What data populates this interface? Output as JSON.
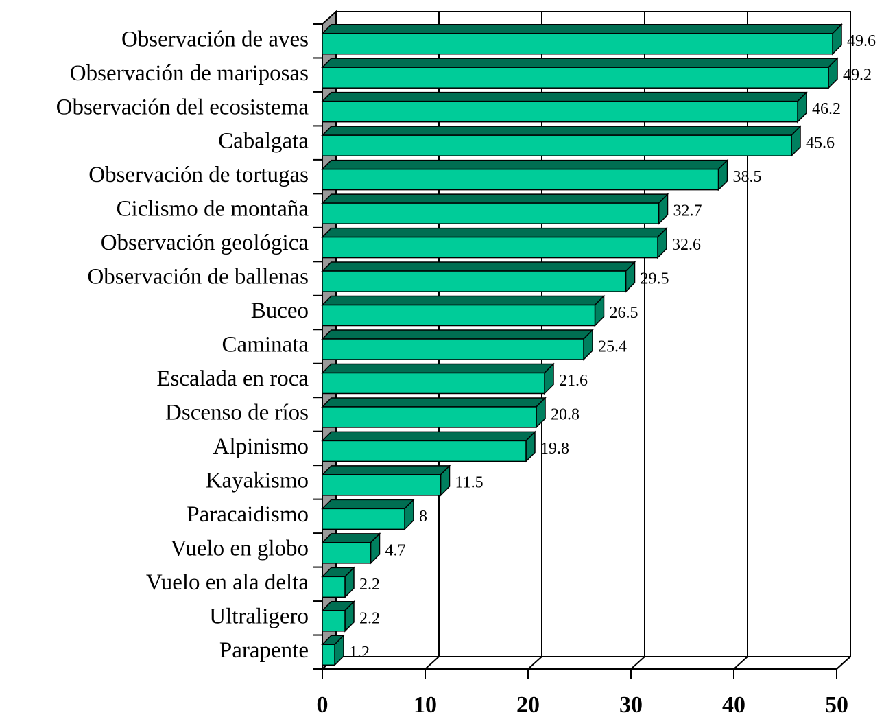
{
  "chart_data": {
    "type": "bar",
    "orientation": "horizontal",
    "categories": [
      "Observación de aves",
      "Observación de mariposas",
      "Observación del ecosistema",
      "Cabalgata",
      "Observación de tortugas",
      "Ciclismo de montaña",
      "Observación geológica",
      "Observación de ballenas",
      "Buceo",
      "Caminata",
      "Escalada en roca",
      "Dscenso de ríos",
      "Alpinismo",
      "Kayakismo",
      "Paracaidismo",
      "Vuelo en globo",
      "Vuelo en ala delta",
      "Ultraligero",
      "Parapente"
    ],
    "values": [
      49.6,
      49.2,
      46.2,
      45.6,
      38.5,
      32.7,
      32.6,
      29.5,
      26.5,
      25.4,
      21.6,
      20.8,
      19.8,
      11.5,
      8,
      4.7,
      2.2,
      2.2,
      1.2
    ],
    "color": "#00cc99",
    "xlim": [
      0,
      50
    ],
    "xticks": [
      0,
      10,
      20,
      30,
      40,
      50
    ],
    "grid": true
  }
}
